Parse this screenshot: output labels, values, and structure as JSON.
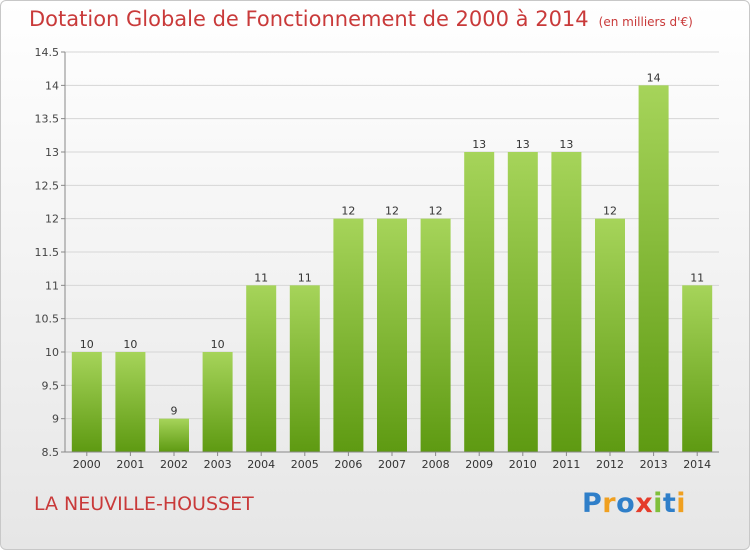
{
  "header": {
    "title": "Dotation Globale de Fonctionnement de 2000 à 2014",
    "subtitle": "(en milliers d'€)"
  },
  "footer": {
    "place": "LA NEUVILLE-HOUSSET",
    "brand": "Proxiti"
  },
  "colors": {
    "title": "#c93a3a",
    "bar_top": "#a6d45a",
    "bar_bottom": "#5e9a12"
  },
  "chart_data": {
    "type": "bar",
    "categories": [
      "2000",
      "2001",
      "2002",
      "2003",
      "2004",
      "2005",
      "2006",
      "2007",
      "2008",
      "2009",
      "2010",
      "2011",
      "2012",
      "2013",
      "2014"
    ],
    "values": [
      10,
      10,
      9,
      10,
      11,
      11,
      12,
      12,
      12,
      13,
      13,
      13,
      12,
      14,
      11
    ],
    "ylim": [
      8.5,
      14.5
    ],
    "yticks": [
      8.5,
      9,
      9.5,
      10,
      10.5,
      11,
      11.5,
      12,
      12.5,
      13,
      13.5,
      14,
      14.5
    ],
    "grid": "horizontal",
    "legend": "none"
  }
}
